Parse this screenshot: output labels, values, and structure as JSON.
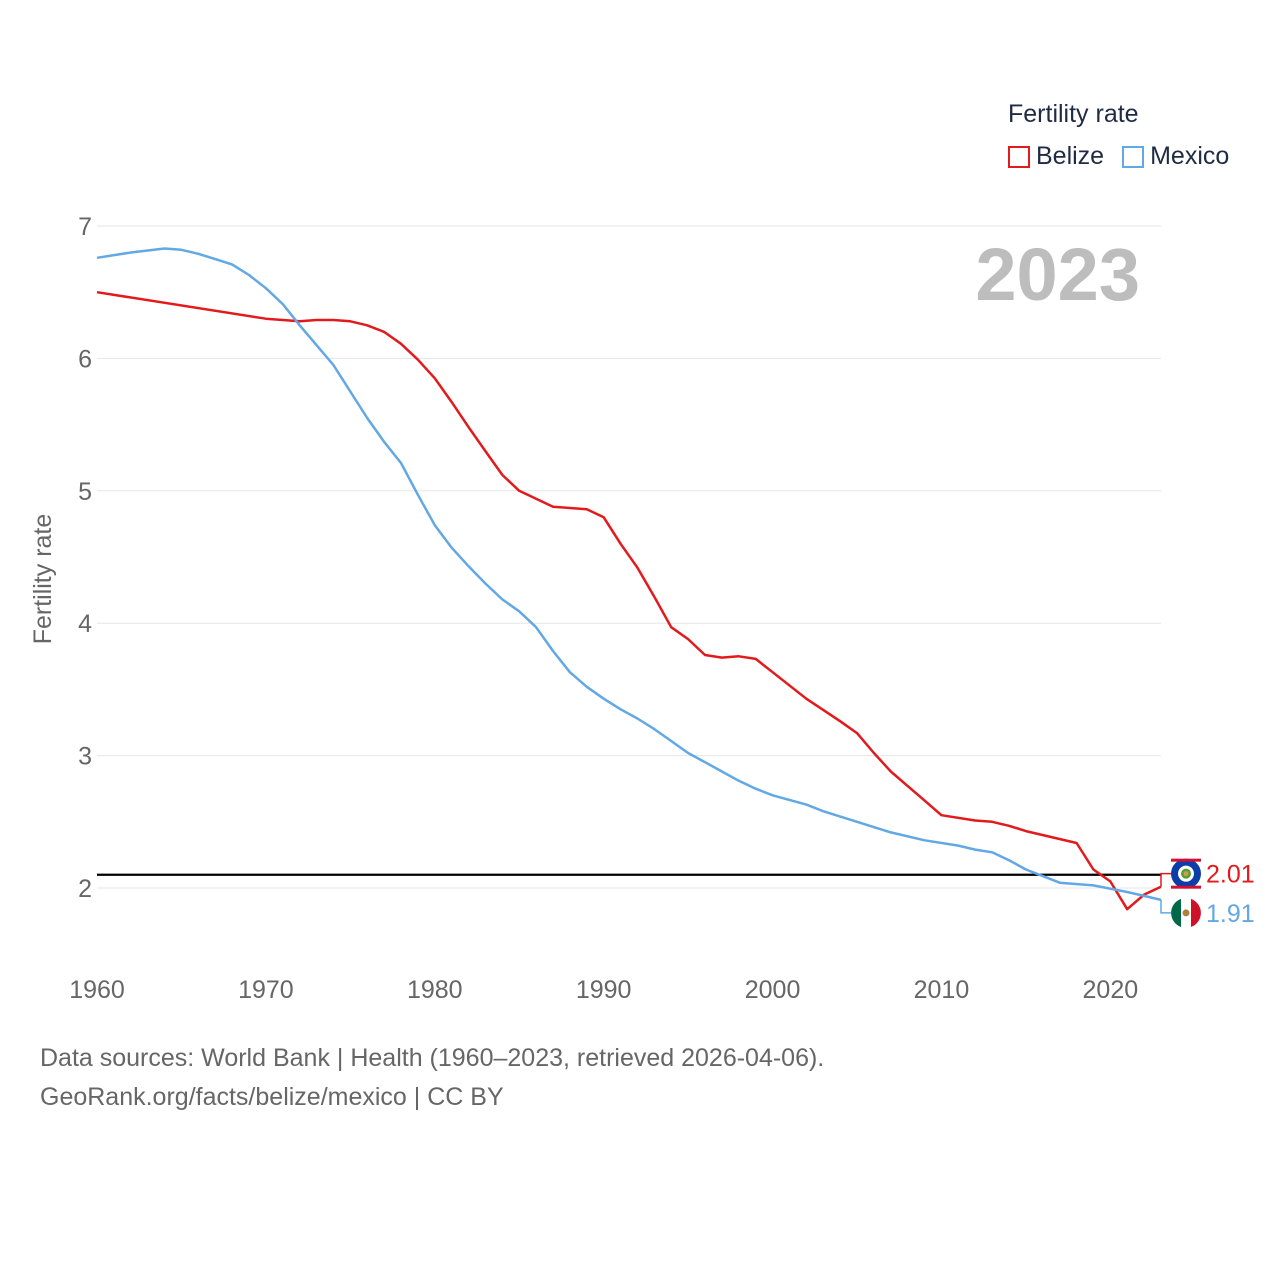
{
  "chart_data": {
    "type": "line",
    "ylabel": "Fertility rate",
    "xlabel": "",
    "ylim": [
      1.5,
      7.1
    ],
    "xlim": [
      1960,
      2023
    ],
    "yticks": [
      2,
      3,
      4,
      5,
      6,
      7
    ],
    "xticks": [
      1960,
      1970,
      1980,
      1990,
      2000,
      2010,
      2020
    ],
    "year_label": "2023",
    "reference_line": 2.1,
    "legend": {
      "title": "Fertility rate",
      "position": "top-right"
    },
    "series": [
      {
        "name": "Belize",
        "color": "#e31a1c",
        "end_label": "2.01",
        "end_icon": "belize-flag-icon",
        "points": [
          [
            1960,
            6.5
          ],
          [
            1970,
            6.3
          ],
          [
            1972,
            6.28
          ],
          [
            1973,
            6.29
          ],
          [
            1974,
            6.29
          ],
          [
            1975,
            6.28
          ],
          [
            1976,
            6.25
          ],
          [
            1977,
            6.2
          ],
          [
            1978,
            6.11
          ],
          [
            1979,
            5.99
          ],
          [
            1980,
            5.85
          ],
          [
            1981,
            5.67
          ],
          [
            1982,
            5.48
          ],
          [
            1983,
            5.3
          ],
          [
            1984,
            5.12
          ],
          [
            1985,
            5.0
          ],
          [
            1987,
            4.88
          ],
          [
            1989,
            4.86
          ],
          [
            1990,
            4.8
          ],
          [
            1991,
            4.6
          ],
          [
            1992,
            4.42
          ],
          [
            1993,
            4.2
          ],
          [
            1994,
            3.97
          ],
          [
            1995,
            3.88
          ],
          [
            1996,
            3.76
          ],
          [
            1997,
            3.74
          ],
          [
            1998,
            3.75
          ],
          [
            1999,
            3.73
          ],
          [
            2000,
            3.63
          ],
          [
            2002,
            3.43
          ],
          [
            2004,
            3.26
          ],
          [
            2005,
            3.17
          ],
          [
            2006,
            3.02
          ],
          [
            2007,
            2.88
          ],
          [
            2008,
            2.77
          ],
          [
            2009,
            2.66
          ],
          [
            2010,
            2.55
          ],
          [
            2012,
            2.51
          ],
          [
            2013,
            2.5
          ],
          [
            2014,
            2.47
          ],
          [
            2015,
            2.43
          ],
          [
            2018,
            2.34
          ],
          [
            2019,
            2.14
          ],
          [
            2020,
            2.05
          ],
          [
            2021,
            1.84
          ],
          [
            2022,
            1.95
          ],
          [
            2023,
            2.01
          ]
        ]
      },
      {
        "name": "Mexico",
        "color": "#62a8e5",
        "end_label": "1.91",
        "end_icon": "mexico-flag-icon",
        "points": [
          [
            1960,
            6.76
          ],
          [
            1962,
            6.8
          ],
          [
            1964,
            6.83
          ],
          [
            1965,
            6.82
          ],
          [
            1966,
            6.79
          ],
          [
            1967,
            6.75
          ],
          [
            1968,
            6.71
          ],
          [
            1969,
            6.63
          ],
          [
            1970,
            6.53
          ],
          [
            1971,
            6.41
          ],
          [
            1972,
            6.25
          ],
          [
            1973,
            6.1
          ],
          [
            1974,
            5.95
          ],
          [
            1975,
            5.75
          ],
          [
            1976,
            5.55
          ],
          [
            1977,
            5.37
          ],
          [
            1978,
            5.21
          ],
          [
            1979,
            4.97
          ],
          [
            1980,
            4.74
          ],
          [
            1981,
            4.57
          ],
          [
            1982,
            4.43
          ],
          [
            1983,
            4.3
          ],
          [
            1984,
            4.18
          ],
          [
            1985,
            4.09
          ],
          [
            1986,
            3.97
          ],
          [
            1987,
            3.79
          ],
          [
            1988,
            3.63
          ],
          [
            1989,
            3.52
          ],
          [
            1990,
            3.43
          ],
          [
            1991,
            3.35
          ],
          [
            1992,
            3.28
          ],
          [
            1993,
            3.2
          ],
          [
            1994,
            3.11
          ],
          [
            1995,
            3.02
          ],
          [
            1996,
            2.95
          ],
          [
            1997,
            2.88
          ],
          [
            1998,
            2.81
          ],
          [
            1999,
            2.75
          ],
          [
            2000,
            2.7
          ],
          [
            2002,
            2.63
          ],
          [
            2003,
            2.58
          ],
          [
            2005,
            2.5
          ],
          [
            2007,
            2.42
          ],
          [
            2009,
            2.36
          ],
          [
            2011,
            2.32
          ],
          [
            2012,
            2.29
          ],
          [
            2013,
            2.27
          ],
          [
            2014,
            2.21
          ],
          [
            2015,
            2.14
          ],
          [
            2016,
            2.09
          ],
          [
            2017,
            2.04
          ],
          [
            2019,
            2.02
          ],
          [
            2021,
            1.97
          ],
          [
            2022,
            1.94
          ],
          [
            2023,
            1.91
          ]
        ]
      }
    ]
  },
  "legend": {
    "title": "Fertility rate",
    "items": [
      {
        "label": "Belize",
        "color": "#e31a1c"
      },
      {
        "label": "Mexico",
        "color": "#62a8e5"
      }
    ]
  },
  "footer": {
    "line1": "Data sources: World Bank | Health (1960–2023, retrieved 2026-04-06).",
    "line2": "GeoRank.org/facts/belize/mexico | CC BY"
  }
}
